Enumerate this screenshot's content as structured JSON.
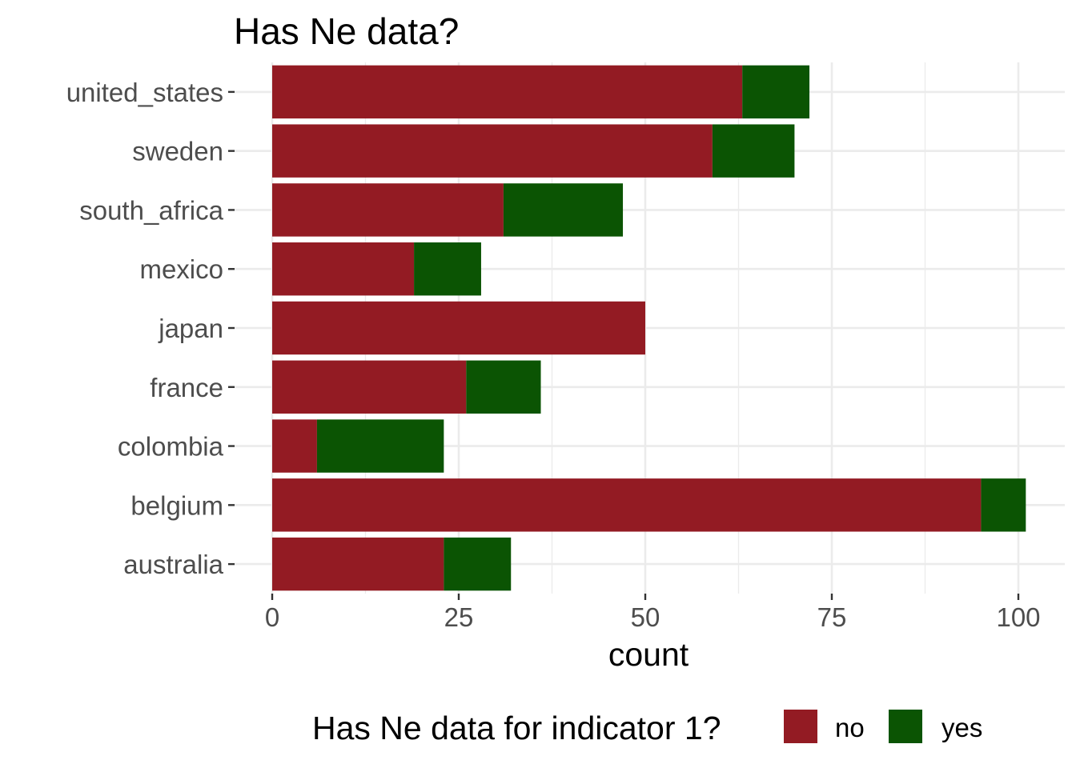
{
  "chart_data": {
    "type": "bar",
    "orientation": "horizontal",
    "stacked": true,
    "title": "Has Ne data?",
    "xlabel": "count",
    "ylabel": "",
    "xlim": [
      0,
      105
    ],
    "xticks": [
      0,
      25,
      50,
      75,
      100
    ],
    "grid": true,
    "categories": [
      "united_states",
      "sweden",
      "south_africa",
      "mexico",
      "japan",
      "france",
      "colombia",
      "belgium",
      "australia"
    ],
    "series": [
      {
        "name": "no",
        "color": "#931b23",
        "values": [
          63,
          59,
          31,
          19,
          50,
          26,
          6,
          95,
          23
        ]
      },
      {
        "name": "yes",
        "color": "#0b5403",
        "values": [
          9,
          11,
          16,
          9,
          0,
          10,
          17,
          6,
          9
        ]
      }
    ],
    "legend": {
      "title": "Has Ne data for indicator 1?",
      "position": "bottom"
    }
  }
}
